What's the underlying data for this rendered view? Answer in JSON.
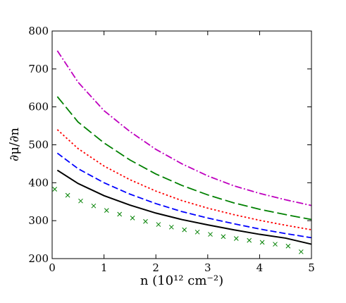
{
  "chart_data": {
    "type": "line",
    "ylabel": "∂μ/∂n",
    "xlabel": "n (10¹² cm⁻²)",
    "xlim": [
      0,
      5
    ],
    "ylim": [
      200,
      800
    ],
    "xticks": [
      0,
      1,
      2,
      3,
      4,
      5
    ],
    "yticks": [
      200,
      300,
      400,
      500,
      600,
      700,
      800
    ],
    "grid": false,
    "legend": "none",
    "series": [
      {
        "style": "dashdot",
        "color": "#bf00bf",
        "x": [
          0.1,
          0.5,
          1.0,
          1.5,
          2.0,
          2.5,
          3.0,
          3.5,
          4.0,
          4.5,
          5.0
        ],
        "y": [
          748,
          665,
          590,
          535,
          488,
          450,
          418,
          392,
          372,
          355,
          340
        ]
      },
      {
        "style": "longdash",
        "color": "#008000",
        "x": [
          0.1,
          0.5,
          1.0,
          1.5,
          2.0,
          2.5,
          3.0,
          3.5,
          4.0,
          4.5,
          5.0
        ],
        "y": [
          627,
          560,
          505,
          460,
          423,
          393,
          368,
          347,
          330,
          316,
          303
        ]
      },
      {
        "style": "dotted",
        "color": "#ff0000",
        "x": [
          0.1,
          0.5,
          1.0,
          1.5,
          2.0,
          2.5,
          3.0,
          3.5,
          4.0,
          4.5,
          5.0
        ],
        "y": [
          540,
          490,
          444,
          408,
          378,
          353,
          333,
          316,
          301,
          288,
          276
        ]
      },
      {
        "style": "dashed",
        "color": "#0000ff",
        "x": [
          0.1,
          0.5,
          1.0,
          1.5,
          2.0,
          2.5,
          3.0,
          3.5,
          4.0,
          4.5,
          5.0
        ],
        "y": [
          478,
          437,
          400,
          370,
          345,
          324,
          307,
          292,
          278,
          266,
          255
        ]
      },
      {
        "style": "solid",
        "color": "#000000",
        "x": [
          0.1,
          0.5,
          1.0,
          1.5,
          2.0,
          2.5,
          3.0,
          3.5,
          4.0,
          4.5,
          5.0
        ],
        "y": [
          433,
          398,
          366,
          341,
          320,
          303,
          289,
          276,
          264,
          254,
          238
        ]
      },
      {
        "style": "markers-x",
        "color": "#008000",
        "x": [
          0.05,
          0.3,
          0.55,
          0.8,
          1.05,
          1.3,
          1.55,
          1.8,
          2.05,
          2.3,
          2.55,
          2.8,
          3.05,
          3.3,
          3.55,
          3.8,
          4.05,
          4.3,
          4.55,
          4.8
        ],
        "y": [
          383,
          367,
          352,
          339,
          327,
          317,
          307,
          298,
          290,
          283,
          276,
          270,
          264,
          258,
          253,
          248,
          243,
          238,
          233,
          218
        ]
      }
    ]
  }
}
